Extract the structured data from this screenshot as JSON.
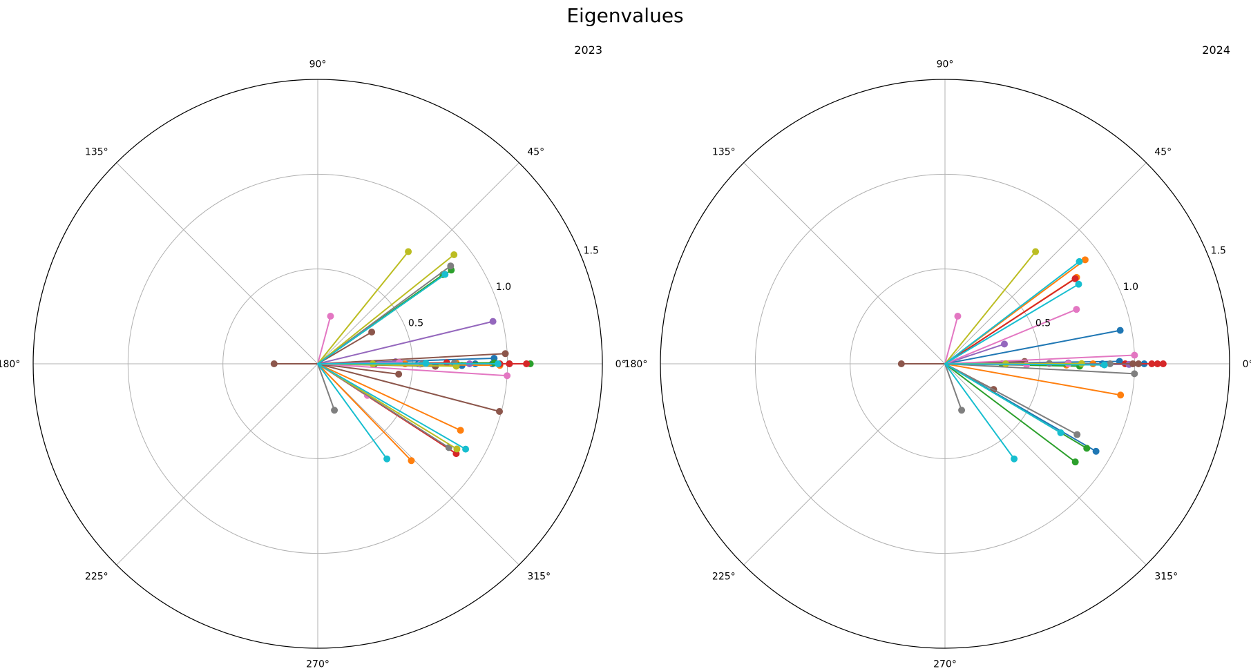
{
  "figure": {
    "title": "Eigenvalues",
    "palette": [
      "#1f77b4",
      "#ff7f0e",
      "#2ca02c",
      "#d62728",
      "#9467bd",
      "#8c564b",
      "#e377c2",
      "#7f7f7f",
      "#bcbd22",
      "#17becf"
    ]
  },
  "chart_data": [
    {
      "type": "polar",
      "title": "2023",
      "rlim": [
        0,
        1.5
      ],
      "r_ticks": [
        0.5,
        1.0,
        1.5
      ],
      "r_tick_labels": [
        "0.5",
        "1.0",
        "1.5"
      ],
      "theta_ticks": [
        0,
        45,
        90,
        135,
        180,
        225,
        270,
        315
      ],
      "theta_tick_labels": [
        "0°",
        "45°",
        "90°",
        "135°",
        "180°",
        "225°",
        "270°",
        "315°"
      ],
      "grid": true,
      "legend": "none",
      "series": [
        {
          "color": "#1f77b4",
          "points": [
            [
              1.01,
              0
            ],
            [
              0.92,
              0
            ],
            [
              0.53,
              0
            ],
            [
              0.76,
              -0.7
            ],
            [
              0.83,
              0
            ],
            [
              0.93,
              1.8
            ]
          ]
        },
        {
          "color": "#ff7f0e",
          "points": [
            [
              0.71,
              -46
            ],
            [
              0.83,
              -25
            ],
            [
              0.96,
              -0.5
            ],
            [
              0.73,
              0.3
            ],
            [
              0.46,
              0
            ]
          ]
        },
        {
          "color": "#2ca02c",
          "points": [
            [
              0.93,
              0.3
            ],
            [
              0.86,
              35.1
            ],
            [
              0.81,
              35.5
            ],
            [
              0.3,
              0
            ],
            [
              1.12,
              0
            ]
          ]
        },
        {
          "color": "#d62728",
          "points": [
            [
              0.87,
              -33
            ],
            [
              0.96,
              0
            ],
            [
              1.01,
              0
            ],
            [
              1.1,
              0
            ],
            [
              0.68,
              0.5
            ]
          ]
        },
        {
          "color": "#9467bd",
          "points": [
            [
              0.95,
              13.6
            ],
            [
              0.8,
              0
            ],
            [
              0.41,
              1.5
            ]
          ]
        },
        {
          "color": "#8c564b",
          "points": [
            [
              0.99,
              3.1
            ],
            [
              0.99,
              -14.7
            ],
            [
              0.33,
              30.5
            ],
            [
              0.23,
              180
            ],
            [
              0.62,
              -1.2
            ],
            [
              0.43,
              -7.3
            ]
          ]
        },
        {
          "color": "#e377c2",
          "points": [
            [
              0.26,
              75
            ],
            [
              1.0,
              -3.6
            ],
            [
              0.31,
              -32.5
            ],
            [
              0.43,
              1.0
            ],
            [
              0.54,
              -0.2
            ]
          ]
        },
        {
          "color": "#7f7f7f",
          "points": [
            [
              0.87,
              36.4
            ],
            [
              0.82,
              -32.6
            ],
            [
              0.26,
              -70.3
            ],
            [
              0.72,
              0.3
            ],
            [
              0.55,
              0
            ]
          ]
        },
        {
          "color": "#bcbd22",
          "points": [
            [
              0.76,
              51.1
            ],
            [
              0.92,
              38.7
            ],
            [
              0.86,
              -31.5
            ],
            [
              0.73,
              -1.0
            ],
            [
              0.29,
              0
            ]
          ]
        },
        {
          "color": "#17becf",
          "points": [
            [
              0.82,
              35.1
            ],
            [
              0.9,
              -30
            ],
            [
              0.62,
              -54
            ],
            [
              0.95,
              0
            ],
            [
              0.57,
              0.3
            ]
          ]
        }
      ]
    },
    {
      "type": "polar",
      "title": "2024",
      "rlim": [
        0,
        1.5
      ],
      "r_ticks": [
        0.5,
        1.0,
        1.5
      ],
      "r_tick_labels": [
        "0.5",
        "1.0",
        "1.5"
      ],
      "theta_ticks": [
        0,
        45,
        90,
        135,
        180,
        225,
        270,
        315
      ],
      "theta_tick_labels": [
        "0°",
        "45°",
        "90°",
        "135°",
        "180°",
        "225°",
        "270°",
        "315°"
      ],
      "grid": true,
      "legend": "none",
      "series": [
        {
          "color": "#1f77b4",
          "points": [
            [
              0.94,
              10.8
            ],
            [
              0.92,
              0.8
            ],
            [
              0.92,
              -30.1
            ],
            [
              0.83,
              0
            ],
            [
              1.05,
              0
            ]
          ]
        },
        {
          "color": "#ff7f0e",
          "points": [
            [
              0.83,
              33.3
            ],
            [
              0.92,
              36.6
            ],
            [
              0.94,
              -10.1
            ],
            [
              0.78,
              0
            ],
            [
              0.64,
              -0.6
            ]
          ]
        },
        {
          "color": "#2ca02c",
          "points": [
            [
              0.86,
              -37
            ],
            [
              0.87,
              -30.8
            ],
            [
              0.71,
              -1.0
            ],
            [
              0.3,
              0
            ]
          ]
        },
        {
          "color": "#d62728",
          "points": [
            [
              0.82,
              33.2
            ],
            [
              1.12,
              0
            ],
            [
              1.09,
              0
            ],
            [
              1.15,
              0
            ],
            [
              0.95,
              0
            ]
          ]
        },
        {
          "color": "#9467bd",
          "points": [
            [
              0.33,
              18.4
            ],
            [
              0.97,
              -0.2
            ],
            [
              0.65,
              0.4
            ]
          ]
        },
        {
          "color": "#8c564b",
          "points": [
            [
              0.23,
              180
            ],
            [
              0.29,
              -27.8
            ],
            [
              0.42,
              1.7
            ],
            [
              1.02,
              0
            ],
            [
              0.99,
              0
            ]
          ]
        },
        {
          "color": "#e377c2",
          "points": [
            [
              0.26,
              75
            ],
            [
              1.0,
              2.6
            ],
            [
              0.75,
              22.5
            ],
            [
              0.43,
              -0.8
            ],
            [
              0.65,
              0
            ]
          ]
        },
        {
          "color": "#7f7f7f",
          "points": [
            [
              0.26,
              -70.3
            ],
            [
              1.0,
              -3.0
            ],
            [
              0.79,
              -28.2
            ],
            [
              0.55,
              0.2
            ],
            [
              0.87,
              0
            ]
          ]
        },
        {
          "color": "#bcbd22",
          "points": [
            [
              0.76,
              51.1
            ],
            [
              0.32,
              0
            ],
            [
              0.72,
              0.1
            ]
          ]
        },
        {
          "color": "#17becf",
          "points": [
            [
              0.89,
              37.3
            ],
            [
              0.71,
              -30.8
            ],
            [
              0.82,
              30.8
            ],
            [
              0.62,
              -54
            ],
            [
              0.84,
              -0.4
            ]
          ]
        }
      ]
    }
  ]
}
